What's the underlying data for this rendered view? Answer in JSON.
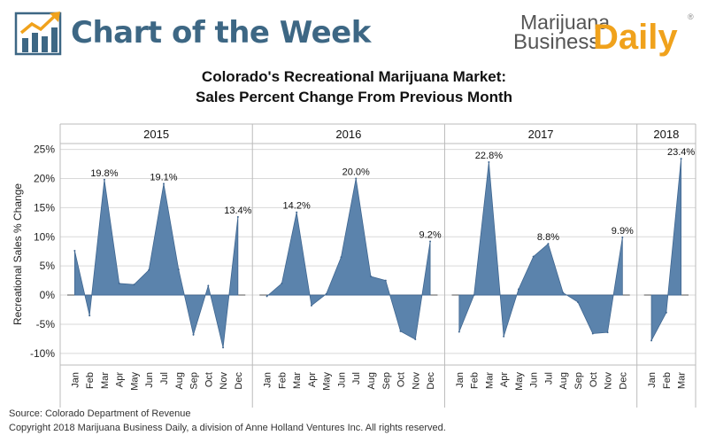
{
  "header": {
    "left_title": "Chart of the Week",
    "logo_line1": "Marijuana",
    "logo_line2": "Business",
    "logo_daily": "Daily",
    "logo_reg": "®"
  },
  "footer": {
    "source": "Source: Colorado Department of Revenue",
    "copyright": "Copyright 2018 Marijuana Business Daily, a division of Anne Holland Ventures Inc. All rights reserved."
  },
  "colors": {
    "fill": "#5b83ac",
    "stroke": "#3f6690",
    "grid": "#d9d9d9",
    "title_blue": "#3d6784",
    "logo_orange": "#f0a21c"
  },
  "chart_data": {
    "type": "area",
    "title": "Colorado's Recreational Marijuana Market:",
    "subtitle": "Sales Percent Change From Previous Month",
    "ylabel": "Recreational Sales % Change",
    "ylim": [
      -12,
      26
    ],
    "yticks": [
      25,
      20,
      15,
      10,
      5,
      0,
      -5,
      -10
    ],
    "ytick_labels": [
      "25%",
      "20%",
      "15%",
      "10%",
      "5%",
      "0%",
      "-5%",
      "-10%"
    ],
    "grid": true,
    "panels": [
      {
        "year": "2015",
        "months": [
          "Jan",
          "Feb",
          "Mar",
          "Apr",
          "May",
          "Jun",
          "Jul",
          "Aug",
          "Sep",
          "Oct",
          "Nov",
          "Dec"
        ],
        "values": [
          7.6,
          -3.5,
          19.8,
          2.0,
          1.8,
          4.3,
          19.1,
          4.4,
          -6.8,
          1.6,
          -9.0,
          13.4
        ],
        "labels": [
          {
            "month": "Mar",
            "text": "19.8%"
          },
          {
            "month": "Jul",
            "text": "19.1%"
          },
          {
            "month": "Dec",
            "text": "13.4%"
          }
        ]
      },
      {
        "year": "2016",
        "months": [
          "Jan",
          "Feb",
          "Mar",
          "Apr",
          "May",
          "Jun",
          "Jul",
          "Aug",
          "Sep",
          "Oct",
          "Nov",
          "Dec"
        ],
        "values": [
          -0.2,
          2.0,
          14.2,
          -1.8,
          0.2,
          6.5,
          20.0,
          3.2,
          2.5,
          -6.2,
          -7.6,
          9.2
        ],
        "labels": [
          {
            "month": "Mar",
            "text": "14.2%"
          },
          {
            "month": "Jul",
            "text": "20.0%"
          },
          {
            "month": "Dec",
            "text": "9.2%"
          }
        ]
      },
      {
        "year": "2017",
        "months": [
          "Jan",
          "Feb",
          "Mar",
          "Apr",
          "May",
          "Jun",
          "Jul",
          "Aug",
          "Sep",
          "Oct",
          "Nov",
          "Dec"
        ],
        "values": [
          -6.3,
          0.0,
          22.8,
          -7.1,
          1.0,
          6.6,
          8.8,
          0.4,
          -1.2,
          -6.6,
          -6.4,
          9.9
        ],
        "labels": [
          {
            "month": "Mar",
            "text": "22.8%"
          },
          {
            "month": "Jul",
            "text": "8.8%"
          },
          {
            "month": "Dec",
            "text": "9.9%"
          }
        ]
      },
      {
        "year": "2018",
        "months": [
          "Jan",
          "Feb",
          "Mar"
        ],
        "values": [
          -7.8,
          -3.0,
          23.4
        ],
        "labels": [
          {
            "month": "Mar",
            "text": "23.4%"
          }
        ]
      }
    ]
  }
}
